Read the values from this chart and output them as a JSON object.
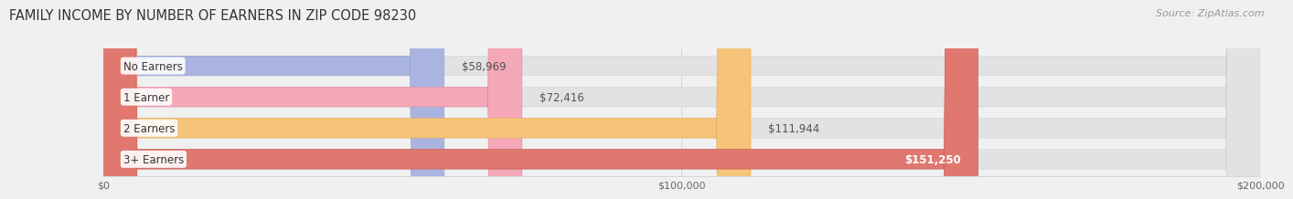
{
  "title": "FAMILY INCOME BY NUMBER OF EARNERS IN ZIP CODE 98230",
  "source": "Source: ZipAtlas.com",
  "categories": [
    "No Earners",
    "1 Earner",
    "2 Earners",
    "3+ Earners"
  ],
  "values": [
    58969,
    72416,
    111944,
    151250
  ],
  "bar_colors": [
    "#aab4e0",
    "#f4a8b8",
    "#f5c47a",
    "#e07870"
  ],
  "bar_edge_colors": [
    "#99a8d4",
    "#e090a8",
    "#e8b060",
    "#cc6055"
  ],
  "value_labels": [
    "$58,969",
    "$72,416",
    "$111,944",
    "$151,250"
  ],
  "xlim": [
    0,
    200000
  ],
  "xticks": [
    0,
    100000,
    200000
  ],
  "xtick_labels": [
    "$0",
    "$100,000",
    "$200,000"
  ],
  "background_color": "#f0f0f0",
  "bar_background_color": "#e2e2e2",
  "title_fontsize": 10.5,
  "source_fontsize": 8,
  "label_fontsize": 8.5,
  "value_fontsize": 8.5,
  "bar_height": 0.63
}
